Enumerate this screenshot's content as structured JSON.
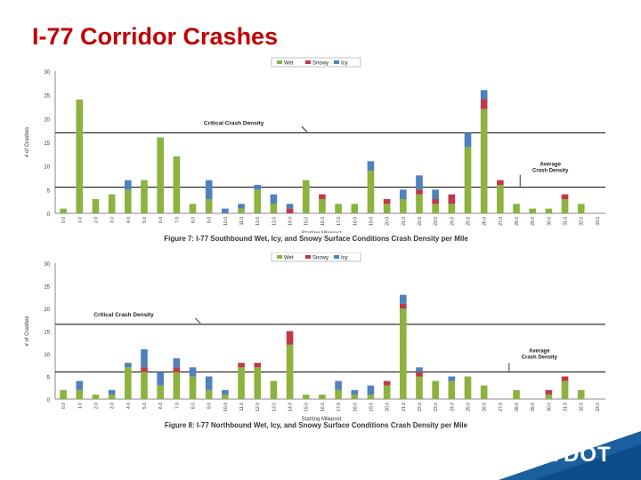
{
  "slide": {
    "title": "I-77 Corridor Crashes",
    "logo_text": "VDOT",
    "accent_color": "#1b5f9e"
  },
  "chart_data": [
    {
      "type": "bar",
      "stacked": true,
      "ylabel": "# of Crashes",
      "xlabel": "Starting Milepost",
      "ylim": [
        0,
        30
      ],
      "yticks": [
        0,
        5,
        10,
        15,
        20,
        25,
        30
      ],
      "caption": "Figure 7: I-77 Southbound Wet, Icy, and Snowy Surface Conditions Crash Density per Mile",
      "legend": {
        "position": "top-right",
        "entries": [
          "Wet",
          "Snowy",
          "Icy"
        ]
      },
      "colors": {
        "Wet": "#8cb33e",
        "Snowy": "#c0394a",
        "Icy": "#4f81bd"
      },
      "critical_line": {
        "label": "Critical Crash Density",
        "value": 17
      },
      "average_line": {
        "label": "Average Crash Density",
        "value": 5.5
      },
      "categories": [
        "0.0",
        "1.0",
        "2.0",
        "3.0",
        "4.0",
        "5.0",
        "6.0",
        "7.0",
        "8.0",
        "9.0",
        "10.0",
        "11.0",
        "12.0",
        "13.0",
        "14.0",
        "15.0",
        "16.0",
        "17.0",
        "18.0",
        "19.0",
        "20.0",
        "21.0",
        "22.0",
        "23.0",
        "24.0",
        "25.0",
        "26.0",
        "27.0",
        "28.0",
        "29.0",
        "30.0",
        "31.0",
        "32.0",
        "33.0"
      ],
      "series": [
        {
          "name": "Wet",
          "values": [
            1,
            24,
            3,
            4,
            5,
            7,
            16,
            12,
            2,
            3,
            0,
            1,
            5,
            2,
            0,
            7,
            3,
            2,
            2,
            9,
            2,
            3,
            4,
            2,
            2,
            14,
            22,
            6,
            2,
            1,
            1,
            3,
            2,
            0
          ]
        },
        {
          "name": "Snowy",
          "values": [
            0,
            0,
            0,
            0,
            0,
            0,
            0,
            0,
            0,
            0,
            0,
            0,
            0,
            0,
            1,
            0,
            1,
            0,
            0,
            0,
            1,
            0,
            1,
            1,
            2,
            0,
            2,
            1,
            0,
            0,
            0,
            1,
            0,
            0
          ]
        },
        {
          "name": "Icy",
          "values": [
            0,
            0,
            0,
            0,
            2,
            0,
            0,
            0,
            0,
            4,
            1,
            1,
            1,
            2,
            1,
            0,
            0,
            0,
            0,
            2,
            0,
            2,
            3,
            2,
            0,
            3,
            2,
            0,
            0,
            0,
            0,
            0,
            0,
            0
          ]
        }
      ]
    },
    {
      "type": "bar",
      "stacked": true,
      "ylabel": "# of Crashes",
      "xlabel": "Starting Milepost",
      "ylim": [
        0,
        30
      ],
      "yticks": [
        0,
        5,
        10,
        15,
        20,
        25,
        30
      ],
      "caption": "Figure 8: I-77 Northbound Wet, Icy, and Snowy Surface Conditions Crash Density per Mile",
      "legend": {
        "position": "top-right",
        "entries": [
          "Wet",
          "Snowy",
          "Icy"
        ]
      },
      "colors": {
        "Wet": "#8cb33e",
        "Snowy": "#c0394a",
        "Icy": "#4f81bd"
      },
      "critical_line": {
        "label": "Critical Crash Density",
        "value": 16.5
      },
      "average_line": {
        "label": "Average Crash Density",
        "value": 6
      },
      "categories": [
        "0.0",
        "1.0",
        "2.0",
        "3.0",
        "4.0",
        "5.0",
        "6.0",
        "7.0",
        "8.0",
        "9.0",
        "10.0",
        "11.0",
        "12.0",
        "13.0",
        "14.0",
        "15.0",
        "16.0",
        "17.0",
        "18.0",
        "19.0",
        "20.0",
        "21.0",
        "22.0",
        "23.0",
        "24.0",
        "25.0",
        "26.0",
        "27.0",
        "28.0",
        "29.0",
        "30.0",
        "31.0",
        "32.0",
        "33.0"
      ],
      "series": [
        {
          "name": "Wet",
          "values": [
            2,
            2,
            1,
            1,
            7,
            6,
            3,
            6,
            5,
            2,
            1,
            7,
            7,
            4,
            12,
            1,
            1,
            2,
            1,
            1,
            3,
            20,
            5,
            4,
            4,
            5,
            3,
            0,
            2,
            0,
            1,
            4,
            2,
            0
          ]
        },
        {
          "name": "Snowy",
          "values": [
            0,
            0,
            0,
            0,
            0,
            1,
            0,
            1,
            0,
            0,
            0,
            1,
            1,
            0,
            3,
            0,
            0,
            0,
            0,
            0,
            1,
            1,
            1,
            0,
            0,
            0,
            0,
            0,
            0,
            0,
            1,
            1,
            0,
            0
          ]
        },
        {
          "name": "Icy",
          "values": [
            0,
            2,
            0,
            1,
            1,
            4,
            3,
            2,
            2,
            3,
            1,
            0,
            0,
            0,
            0,
            0,
            0,
            2,
            1,
            2,
            0,
            2,
            1,
            0,
            1,
            0,
            0,
            0,
            0,
            0,
            0,
            0,
            0,
            0
          ]
        }
      ]
    }
  ]
}
